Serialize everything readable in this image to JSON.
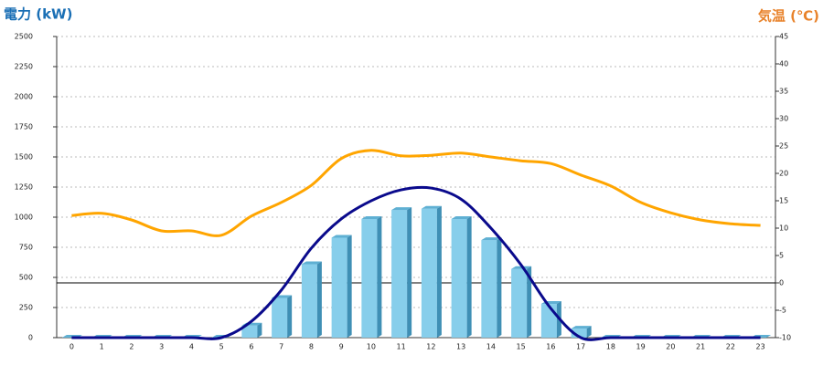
{
  "chart_data": {
    "type": "bar_line",
    "y_title": "電力 (kW)",
    "y2_title": "気温 (℃)",
    "categories": [
      "0",
      "1",
      "2",
      "3",
      "4",
      "5",
      "6",
      "7",
      "8",
      "9",
      "10",
      "11",
      "12",
      "13",
      "14",
      "15",
      "16",
      "17",
      "18",
      "19",
      "20",
      "21",
      "22",
      "23"
    ],
    "series": [
      {
        "type": "bar",
        "axis": "y",
        "color": "#87ceeb",
        "values": [
          0,
          0,
          0,
          0,
          0,
          0,
          100,
          330,
          610,
          830,
          985,
          1060,
          1070,
          985,
          810,
          570,
          280,
          75,
          0,
          0,
          0,
          0,
          0,
          0
        ]
      },
      {
        "type": "line",
        "axis": "y",
        "color": "#0a0a8c",
        "values": [
          0,
          0,
          0,
          0,
          0,
          0,
          135,
          394,
          742,
          985,
          1136,
          1227,
          1242,
          1150,
          909,
          606,
          242,
          0,
          0,
          0,
          0,
          0,
          0,
          0
        ]
      },
      {
        "type": "line",
        "axis": "y2",
        "color": "#ffa500",
        "values": [
          12.3,
          12.7,
          11.5,
          9.5,
          9.5,
          8.7,
          12.2,
          14.7,
          17.8,
          22.7,
          24.2,
          23.2,
          23.3,
          23.7,
          23.0,
          22.3,
          21.8,
          19.7,
          17.7,
          14.7,
          12.8,
          11.5,
          10.8,
          10.5
        ]
      }
    ],
    "ylim": [
      0,
      2500
    ],
    "yticks": [
      0,
      250,
      500,
      750,
      1000,
      1250,
      1500,
      1750,
      2000,
      2250,
      2500
    ],
    "y2lim": [
      -10,
      45
    ],
    "y2ticks": [
      -10,
      -5,
      0,
      5,
      10,
      15,
      20,
      25,
      30,
      35,
      40,
      45
    ],
    "grid": true,
    "reference_lines": [
      {
        "axis": "y2",
        "value": 0
      }
    ]
  }
}
